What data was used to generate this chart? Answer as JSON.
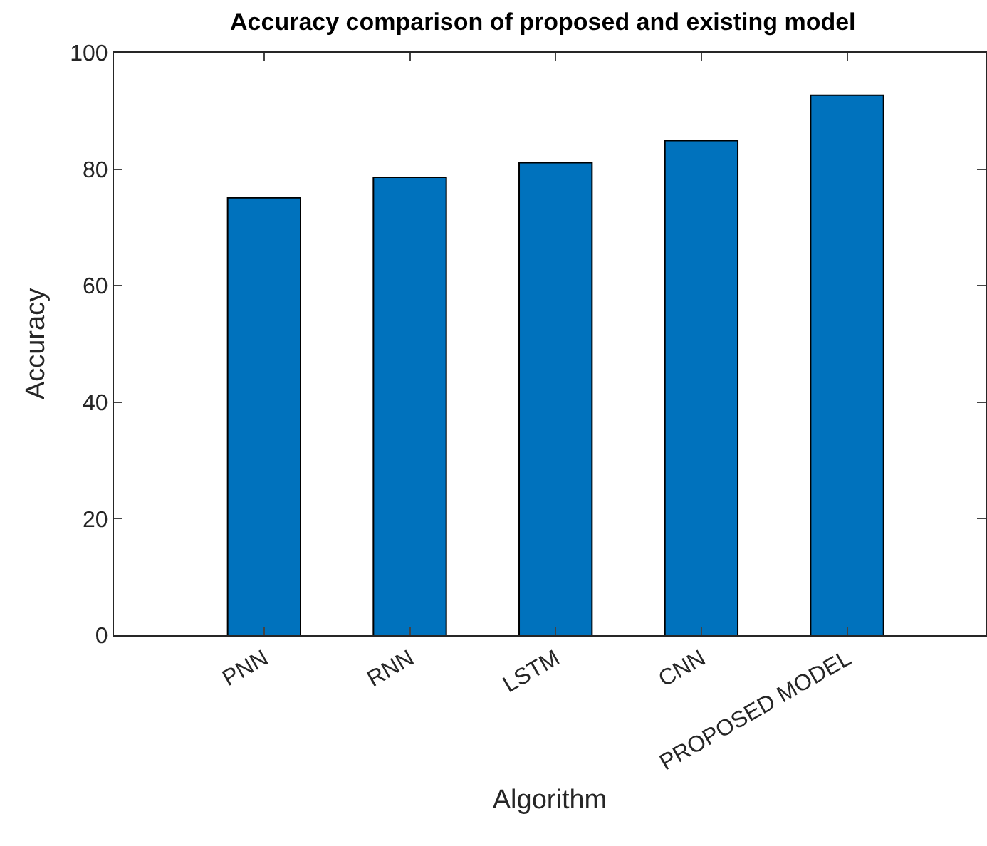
{
  "chart_data": {
    "type": "bar",
    "title": "Accuracy comparison of proposed and existing model",
    "xlabel": "Algorithm",
    "ylabel": "Accuracy",
    "categories": [
      "PNN",
      "RNN",
      "LSTM",
      "CNN",
      "PROPOSED MODEL"
    ],
    "values": [
      75.1,
      78.6,
      81.1,
      84.9,
      92.7
    ],
    "color": "#0072bd",
    "ylim": [
      0,
      100
    ],
    "yticks": [
      0,
      20,
      40,
      60,
      80,
      100
    ],
    "grid": false,
    "legend": false
  }
}
